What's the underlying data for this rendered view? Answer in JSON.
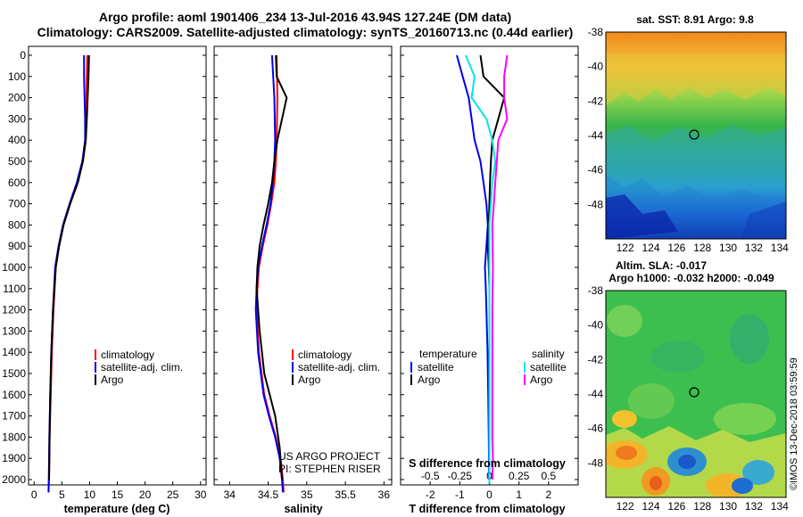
{
  "title_line1": "Argo profile: aoml 1901406_234 13-Jul-2016 43.94S 127.24E (DM data)",
  "title_line2": "Climatology: CARS2009. Satellite-adjusted climatology: synTS_20160713.nc (0.44d earlier)",
  "project_line1": "US ARGO PROJECT",
  "project_line2": "PI: STEPHEN RISER",
  "watermark": "©IMOS 13-Dec-2018 03:59:59",
  "sst_title": "sat. SST: 8.91 Argo: 9.8",
  "sla_title1": "Altim. SLA: -0.017",
  "sla_title2": "Argo h1000: -0.032 h2000: -0.049",
  "colors": {
    "climatology": "#ff0000",
    "satellite": "#0000ee",
    "argo": "#000000",
    "sal_clim": "#ff00ff",
    "sal_sat": "#00e5ee"
  },
  "chart_data": [
    {
      "type": "line",
      "name": "temperature",
      "xlabel": "temperature (deg C)",
      "xlim": [
        -1,
        31
      ],
      "xticks": [
        0,
        5,
        10,
        15,
        20,
        25,
        30
      ],
      "ylim": [
        2060,
        0
      ],
      "yticks": [
        0,
        100,
        200,
        300,
        400,
        500,
        600,
        700,
        800,
        900,
        1000,
        1100,
        1200,
        1300,
        1400,
        1500,
        1600,
        1700,
        1800,
        1900,
        2000
      ],
      "legend": [
        "climatology",
        "satellite-adj. clim.",
        "Argo"
      ],
      "series": [
        {
          "name": "climatology",
          "color": "#ff0000",
          "x": [
            9.6,
            9.5,
            9.4,
            9.3,
            8.8,
            7.8,
            6.5,
            5.3,
            4.5,
            3.9,
            3.5,
            3.2,
            3.0,
            2.8,
            2.7,
            2.6
          ],
          "y": [
            0,
            100,
            300,
            400,
            500,
            600,
            700,
            800,
            900,
            1000,
            1200,
            1400,
            1600,
            1800,
            2000,
            2060
          ]
        },
        {
          "name": "satellite-adj. clim.",
          "color": "#0000ee",
          "x": [
            9.0,
            9.0,
            9.2,
            9.2,
            8.7,
            7.7,
            6.4,
            5.2,
            4.4,
            3.8,
            3.4,
            3.1,
            2.9,
            2.75,
            2.65,
            2.6
          ],
          "y": [
            0,
            100,
            300,
            400,
            500,
            600,
            700,
            800,
            900,
            1000,
            1200,
            1400,
            1600,
            1800,
            2000,
            2060
          ]
        },
        {
          "name": "Argo",
          "color": "#000000",
          "x": [
            9.9,
            9.8,
            9.5,
            9.3,
            8.8,
            7.9,
            6.5,
            5.3,
            4.5,
            3.9,
            3.4,
            3.1,
            2.9,
            2.8,
            2.7
          ],
          "y": [
            0,
            100,
            300,
            400,
            500,
            600,
            700,
            800,
            900,
            1000,
            1200,
            1400,
            1600,
            1800,
            2000
          ]
        }
      ]
    },
    {
      "type": "line",
      "name": "salinity",
      "xlabel": "salinity",
      "xlim": [
        33.8,
        36.1
      ],
      "xticks": [
        34,
        34.5,
        35,
        35.5,
        36
      ],
      "ylim": [
        2060,
        0
      ],
      "legend": [
        "climatology",
        "satellite-adj. clim.",
        "Argo"
      ],
      "series": [
        {
          "name": "climatology",
          "color": "#ff0000",
          "x": [
            34.61,
            34.62,
            34.61,
            34.6,
            34.58,
            34.54,
            34.49,
            34.43,
            34.38,
            34.36,
            34.35,
            34.38,
            34.45,
            34.52,
            34.6,
            34.66,
            34.69,
            34.7
          ],
          "y": [
            0,
            200,
            400,
            500,
            600,
            700,
            800,
            900,
            1000,
            1100,
            1200,
            1400,
            1600,
            1700,
            1800,
            1900,
            2000,
            2060
          ]
        },
        {
          "name": "satellite-adj. clim.",
          "color": "#0000ee",
          "x": [
            34.55,
            34.58,
            34.59,
            34.58,
            34.56,
            34.53,
            34.48,
            34.42,
            34.37,
            34.35,
            34.34,
            34.37,
            34.44,
            34.51,
            34.59,
            34.65,
            34.68,
            34.69
          ],
          "y": [
            0,
            200,
            400,
            500,
            600,
            700,
            800,
            900,
            1000,
            1100,
            1200,
            1400,
            1600,
            1700,
            1800,
            1900,
            2000,
            2060
          ]
        },
        {
          "name": "Argo",
          "color": "#000000",
          "x": [
            34.6,
            34.61,
            34.74,
            34.68,
            34.62,
            34.58,
            34.55,
            34.5,
            34.44,
            34.39,
            34.36,
            34.35,
            34.39,
            34.45,
            34.52,
            34.59,
            34.65,
            34.68
          ],
          "y": [
            0,
            100,
            200,
            300,
            400,
            500,
            600,
            700,
            800,
            900,
            1000,
            1100,
            1300,
            1500,
            1600,
            1700,
            1850,
            2000
          ]
        }
      ]
    },
    {
      "type": "line",
      "name": "difference",
      "xlabel": "T difference from climatology",
      "xlabel_top": "S difference from climatology",
      "xlim": [
        -3,
        3
      ],
      "xticks": [
        -2,
        -1,
        0,
        1,
        2
      ],
      "xticks_top": [
        "-0.5",
        "-0.25",
        "0",
        "0.25",
        "0.5"
      ],
      "ylim": [
        2060,
        0
      ],
      "legend_left_title": "temperature",
      "legend_right_title": "salinity",
      "legend_left": [
        "satellite",
        "Argo"
      ],
      "legend_right": [
        "satellite",
        "Argo"
      ],
      "series": [
        {
          "name": "temperature satellite",
          "color": "#0000ee",
          "x": [
            -1.1,
            -0.9,
            -0.7,
            -0.6,
            -0.5,
            -0.3,
            -0.2,
            -0.1,
            -0.05,
            -0.1,
            -0.15,
            -0.12,
            -0.1,
            -0.08,
            -0.06,
            -0.05,
            -0.04,
            -0.03,
            -0.02,
            -0.01
          ],
          "y": [
            0,
            100,
            200,
            300,
            400,
            500,
            600,
            700,
            800,
            900,
            1000,
            1100,
            1200,
            1300,
            1400,
            1500,
            1600,
            1700,
            1800,
            2000
          ]
        },
        {
          "name": "temperature Argo",
          "color": "#000000",
          "x": [
            -0.3,
            -0.2,
            0.5,
            0.3,
            0.1,
            0.05,
            0.02,
            0.0,
            -0.02,
            -0.05,
            -0.02,
            0.0,
            0.0,
            0.0,
            0.0,
            0.0,
            0.0,
            0.0
          ],
          "y": [
            0,
            100,
            200,
            300,
            400,
            500,
            600,
            700,
            800,
            900,
            1000,
            1100,
            1200,
            1400,
            1600,
            1800,
            2000,
            2020
          ]
        },
        {
          "name": "salinity satellite",
          "color": "#00e5ee",
          "x": [
            -0.8,
            -0.5,
            -0.6,
            -0.1,
            0.1,
            0.2,
            0.1,
            0.05,
            0.0,
            0.0,
            0.0,
            0.0,
            0.0,
            0.0,
            0.0,
            0.0
          ],
          "y": [
            0,
            100,
            200,
            300,
            400,
            500,
            600,
            700,
            800,
            1000,
            1200,
            1400,
            1600,
            1800,
            2000,
            2020
          ]
        },
        {
          "name": "salinity Argo",
          "color": "#ff00ff",
          "x": [
            0.6,
            0.5,
            0.5,
            0.6,
            0.3,
            0.25,
            0.2,
            0.15,
            0.1,
            0.12,
            0.1,
            0.1,
            0.1,
            0.1,
            0.12,
            0.1
          ],
          "y": [
            0,
            100,
            200,
            300,
            400,
            500,
            600,
            700,
            800,
            1000,
            1200,
            1400,
            1600,
            1800,
            1900,
            2000
          ]
        }
      ]
    },
    {
      "type": "heatmap",
      "name": "sst-map",
      "title": "sat. SST: 8.91 Argo: 9.8",
      "xlim": [
        120.5,
        134.5
      ],
      "ylim": [
        -50,
        -38
      ],
      "xticks": [
        122,
        124,
        126,
        128,
        130,
        132,
        134
      ],
      "yticks": [
        -38,
        -40,
        -42,
        -44,
        -46,
        -48
      ],
      "marker": {
        "lon": 127.24,
        "lat": -43.94
      }
    },
    {
      "type": "heatmap",
      "name": "sla-map",
      "title": "Altim. SLA: -0.017",
      "xlim": [
        120.5,
        134.5
      ],
      "ylim": [
        -50,
        -38
      ],
      "xticks": [
        122,
        124,
        126,
        128,
        130,
        132,
        134
      ],
      "yticks": [
        -38,
        -40,
        -42,
        -44,
        -46,
        -48
      ],
      "marker": {
        "lon": 127.24,
        "lat": -43.94
      }
    }
  ]
}
